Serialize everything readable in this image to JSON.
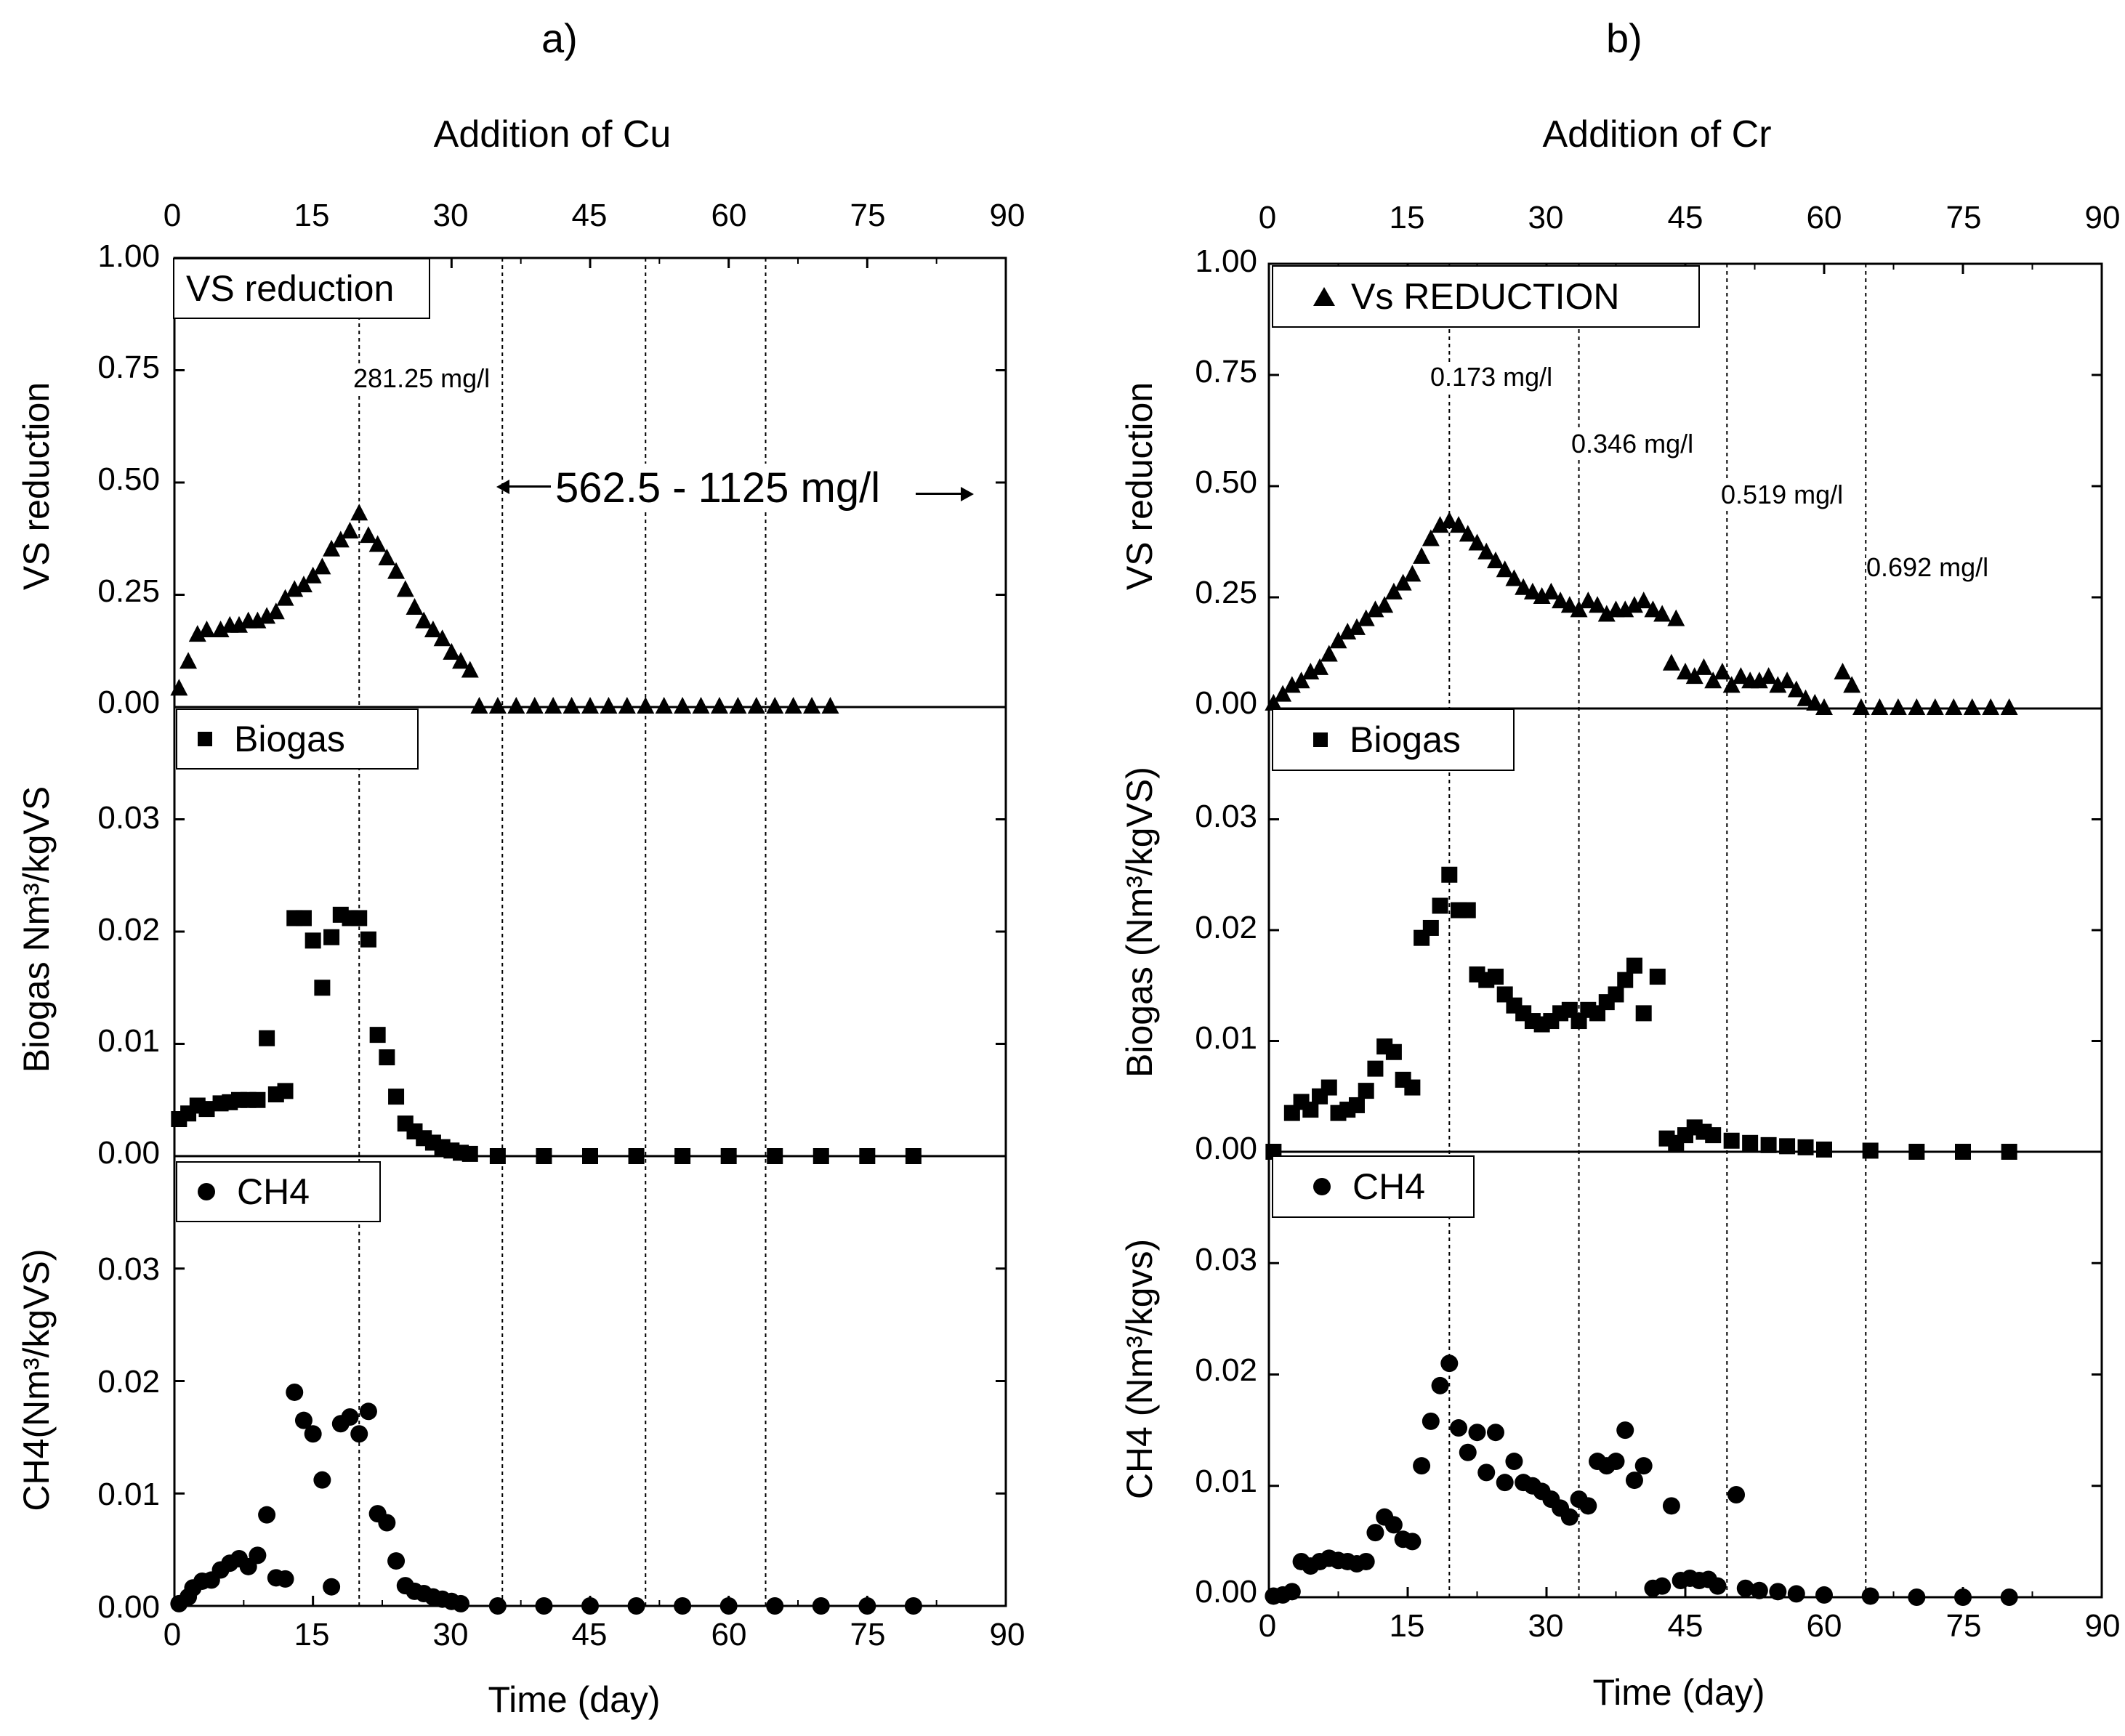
{
  "figure_labels": [
    "a)",
    "b)"
  ],
  "chart_data": [
    {
      "panel": "a",
      "type": "scatter",
      "top_title": "Addition of Cu",
      "xlabel": "Time (day)",
      "xlim": [
        0,
        90
      ],
      "xticks": [
        "0",
        "15",
        "30",
        "45",
        "60",
        "75",
        "90"
      ],
      "vlines_x": [
        20,
        35.5,
        51,
        64
      ],
      "annotations": [
        {
          "text": "281.25 mg/l"
        },
        {
          "text": "562.5 - 1125 mg/l"
        }
      ],
      "subplots": [
        {
          "name": "vs",
          "ylabel": "VS reduction",
          "ylim": [
            0,
            1
          ],
          "yticks": [
            "1.00",
            "0.75",
            "0.50",
            "0.25",
            "0.00"
          ],
          "legend": "VS reduction",
          "marker": "triangle",
          "x": [
            0.5,
            1.5,
            2.5,
            3.5,
            5,
            6,
            7,
            8,
            9,
            10,
            11,
            12,
            13,
            14,
            15,
            16,
            17,
            18,
            19,
            20,
            21,
            22,
            23,
            24,
            25,
            26,
            27,
            28,
            29,
            30,
            31,
            32,
            33,
            35,
            37,
            39,
            41,
            43,
            45,
            47,
            49,
            51,
            53,
            55,
            57,
            59,
            61,
            63,
            65,
            67,
            69,
            71
          ],
          "y": [
            0.04,
            0.1,
            0.16,
            0.17,
            0.17,
            0.18,
            0.18,
            0.19,
            0.19,
            0.2,
            0.21,
            0.24,
            0.26,
            0.27,
            0.29,
            0.31,
            0.35,
            0.37,
            0.39,
            0.43,
            0.38,
            0.36,
            0.33,
            0.3,
            0.26,
            0.22,
            0.19,
            0.17,
            0.15,
            0.12,
            0.1,
            0.08,
            0.0,
            0.0,
            0.0,
            0.0,
            0.0,
            0.0,
            0.0,
            0.0,
            0.0,
            0.0,
            0.0,
            0.0,
            0.0,
            0.0,
            0.0,
            0.0,
            0.0,
            0.0,
            0.0,
            0.0
          ]
        },
        {
          "name": "biogas",
          "ylabel": "Biogas Nm³/kgVS",
          "ylim": [
            0,
            0.04
          ],
          "yticks": [
            "0.03",
            "0.02",
            "0.01",
            "0.00"
          ],
          "legend": "Biogas",
          "marker": "square",
          "x": [
            0.5,
            1.5,
            2.5,
            3.5,
            5,
            6,
            7,
            8,
            9,
            10,
            11,
            12,
            13,
            14,
            15,
            16,
            17,
            18,
            19,
            20,
            21,
            22,
            23,
            24,
            25,
            26,
            27,
            28,
            29,
            30,
            31,
            32,
            35,
            40,
            45,
            50,
            55,
            60,
            65,
            70,
            75,
            80
          ],
          "y": [
            0.0033,
            0.0038,
            0.0045,
            0.0042,
            0.0047,
            0.0048,
            0.005,
            0.005,
            0.005,
            0.0105,
            0.0055,
            0.0058,
            0.0212,
            0.0212,
            0.0192,
            0.015,
            0.0195,
            0.0215,
            0.0212,
            0.0212,
            0.0193,
            0.0108,
            0.0088,
            0.0053,
            0.0029,
            0.0022,
            0.0016,
            0.0012,
            0.0008,
            0.0005,
            0.0003,
            0.0002,
            0.0,
            0.0,
            0.0,
            0.0,
            0.0,
            0.0,
            0.0,
            0.0,
            0.0,
            0.0
          ]
        },
        {
          "name": "ch4",
          "ylabel": "CH4(Nm³/kgVS)",
          "ylim": [
            0,
            0.04
          ],
          "yticks": [
            "0.03",
            "0.02",
            "0.01",
            "0.00"
          ],
          "legend": "CH4",
          "marker": "circle",
          "x": [
            0.5,
            1.5,
            2,
            3,
            4,
            5,
            6,
            7,
            8,
            9,
            10,
            11,
            12,
            13,
            14,
            15,
            16,
            17,
            18,
            19,
            20,
            21,
            22,
            23,
            24,
            25,
            26,
            27,
            28,
            29,
            30,
            31,
            35,
            40,
            45,
            50,
            55,
            60,
            65,
            70,
            75,
            80
          ],
          "y": [
            0.0002,
            0.0008,
            0.0016,
            0.0022,
            0.0023,
            0.0032,
            0.0038,
            0.0042,
            0.0035,
            0.0045,
            0.0081,
            0.0025,
            0.0024,
            0.019,
            0.0165,
            0.0153,
            0.0112,
            0.0017,
            0.0162,
            0.0168,
            0.0153,
            0.0173,
            0.0082,
            0.0074,
            0.004,
            0.0018,
            0.0013,
            0.0011,
            0.0008,
            0.0006,
            0.0004,
            0.0002,
            0.0,
            0.0,
            0.0,
            0.0,
            0.0,
            0.0,
            0.0,
            0.0,
            0.0,
            0.0
          ]
        }
      ]
    },
    {
      "panel": "b",
      "type": "scatter",
      "top_title": "Addition of Cr",
      "xlabel": "Time (day)",
      "xlim": [
        0,
        90
      ],
      "xticks": [
        "0",
        "15",
        "30",
        "45",
        "60",
        "75",
        "90"
      ],
      "vlines_x": [
        19.5,
        33.5,
        49.5,
        64.5
      ],
      "annotations": [
        {
          "text": "0.173 mg/l"
        },
        {
          "text": "0.346 mg/l"
        },
        {
          "text": "0.519 mg/l"
        },
        {
          "text": "0.692 mg/l"
        }
      ],
      "subplots": [
        {
          "name": "vs",
          "ylabel": "VS reduction",
          "ylim": [
            0,
            1
          ],
          "yticks": [
            "1.00",
            "0.75",
            "0.50",
            "0.25",
            "0.00"
          ],
          "legend": "Vs REDUCTION",
          "marker": "triangle",
          "x": [
            0.5,
            1.5,
            2.5,
            3.5,
            4.5,
            5.5,
            6.5,
            7.5,
            8.5,
            9.5,
            10.5,
            11.5,
            12.5,
            13.5,
            14.5,
            15.5,
            16.5,
            17.5,
            18.5,
            19.5,
            20.5,
            21.5,
            22.5,
            23.5,
            24.5,
            25.5,
            26.5,
            27.5,
            28.5,
            29.5,
            30.5,
            31.5,
            32.5,
            33.5,
            34.5,
            35.5,
            36.5,
            37.5,
            38.5,
            39.5,
            40.5,
            41.5,
            42.5,
            43.5,
            44,
            45,
            46,
            47,
            48,
            49,
            50,
            51,
            52,
            53,
            54,
            55,
            56,
            57,
            58,
            59,
            60,
            62,
            63,
            64,
            66,
            68,
            70,
            72,
            74,
            76,
            78,
            80
          ],
          "y": [
            0.01,
            0.03,
            0.05,
            0.06,
            0.08,
            0.09,
            0.12,
            0.15,
            0.17,
            0.18,
            0.2,
            0.22,
            0.23,
            0.26,
            0.28,
            0.3,
            0.34,
            0.38,
            0.41,
            0.42,
            0.41,
            0.39,
            0.37,
            0.35,
            0.33,
            0.31,
            0.29,
            0.27,
            0.26,
            0.25,
            0.26,
            0.24,
            0.23,
            0.22,
            0.24,
            0.23,
            0.21,
            0.22,
            0.22,
            0.23,
            0.24,
            0.22,
            0.21,
            0.1,
            0.2,
            0.08,
            0.07,
            0.09,
            0.06,
            0.08,
            0.05,
            0.07,
            0.06,
            0.06,
            0.07,
            0.05,
            0.06,
            0.04,
            0.02,
            0.01,
            0.0,
            0.08,
            0.05,
            0.0,
            0.0,
            0.0,
            0.0,
            0.0,
            0.0,
            0.0,
            0.0,
            0.0
          ]
        },
        {
          "name": "biogas",
          "ylabel": "Biogas (Nm³/kgVS)",
          "ylim": [
            0,
            0.04
          ],
          "yticks": [
            "0.03",
            "0.02",
            "0.01",
            "0.00"
          ],
          "legend": "Biogas",
          "marker": "square",
          "x": [
            0.5,
            2.5,
            3.5,
            4.5,
            5.5,
            6.5,
            7.5,
            8.5,
            9.5,
            10.5,
            11.5,
            12.5,
            13.5,
            14.5,
            15.5,
            16.5,
            17.5,
            18.5,
            19.5,
            20.5,
            21.5,
            22.5,
            23.5,
            24.5,
            25.5,
            26.5,
            27.5,
            28.5,
            29.5,
            30.5,
            31.5,
            32.5,
            33.5,
            34.5,
            35.5,
            36.5,
            37.5,
            38.5,
            39.5,
            40.5,
            42,
            43,
            44,
            45,
            46,
            47,
            48,
            50,
            52,
            54,
            56,
            58,
            60,
            65,
            70,
            75,
            80
          ],
          "y": [
            0.0,
            0.0035,
            0.0045,
            0.0038,
            0.005,
            0.0058,
            0.0035,
            0.0038,
            0.0042,
            0.0055,
            0.0075,
            0.0095,
            0.009,
            0.0065,
            0.0058,
            0.0193,
            0.0202,
            0.0222,
            0.025,
            0.0218,
            0.0218,
            0.016,
            0.0155,
            0.0158,
            0.0142,
            0.0132,
            0.0125,
            0.0118,
            0.0115,
            0.0118,
            0.0125,
            0.0128,
            0.0118,
            0.0128,
            0.0125,
            0.0135,
            0.0142,
            0.0155,
            0.0168,
            0.0125,
            0.0158,
            0.0012,
            0.0008,
            0.0015,
            0.0022,
            0.0018,
            0.0015,
            0.001,
            0.0008,
            0.0006,
            0.0005,
            0.0004,
            0.0002,
            0.0001,
            0.0,
            0.0,
            0.0
          ]
        },
        {
          "name": "ch4",
          "ylabel": "CH4 (Nm³/kgvs)",
          "ylim": [
            0,
            0.04
          ],
          "yticks": [
            "0.03",
            "0.02",
            "0.01",
            "0.00"
          ],
          "legend": "CH4",
          "marker": "circle",
          "x": [
            0.5,
            1.5,
            2.5,
            3.5,
            4.5,
            5.5,
            6.5,
            7.5,
            8.5,
            9.5,
            10.5,
            11.5,
            12.5,
            13.5,
            14.5,
            15.5,
            16.5,
            17.5,
            18.5,
            19.5,
            20.5,
            21.5,
            22.5,
            23.5,
            24.5,
            25.5,
            26.5,
            27.5,
            28.5,
            29.5,
            30.5,
            31.5,
            32.5,
            33.5,
            34.5,
            35.5,
            36.5,
            37.5,
            38.5,
            39.5,
            40.5,
            41.5,
            42.5,
            43.5,
            44.5,
            45.5,
            46.5,
            47.5,
            48.5,
            50.5,
            51.5,
            53,
            55,
            57,
            60,
            65,
            70,
            75,
            80
          ],
          "y": [
            0.0001,
            0.0002,
            0.0005,
            0.0032,
            0.0028,
            0.0032,
            0.0035,
            0.0033,
            0.0032,
            0.003,
            0.0032,
            0.0058,
            0.0072,
            0.0065,
            0.0052,
            0.005,
            0.0118,
            0.0158,
            0.019,
            0.021,
            0.0152,
            0.013,
            0.0148,
            0.0112,
            0.0148,
            0.0103,
            0.0122,
            0.0103,
            0.01,
            0.0095,
            0.0088,
            0.008,
            0.0072,
            0.0088,
            0.0082,
            0.0122,
            0.0118,
            0.0122,
            0.015,
            0.0105,
            0.0118,
            0.0008,
            0.001,
            0.0082,
            0.0015,
            0.0017,
            0.0015,
            0.0016,
            0.001,
            0.0092,
            0.0008,
            0.0006,
            0.0005,
            0.0003,
            0.0002,
            0.0001,
            0.0,
            0.0,
            0.0
          ]
        }
      ]
    }
  ]
}
